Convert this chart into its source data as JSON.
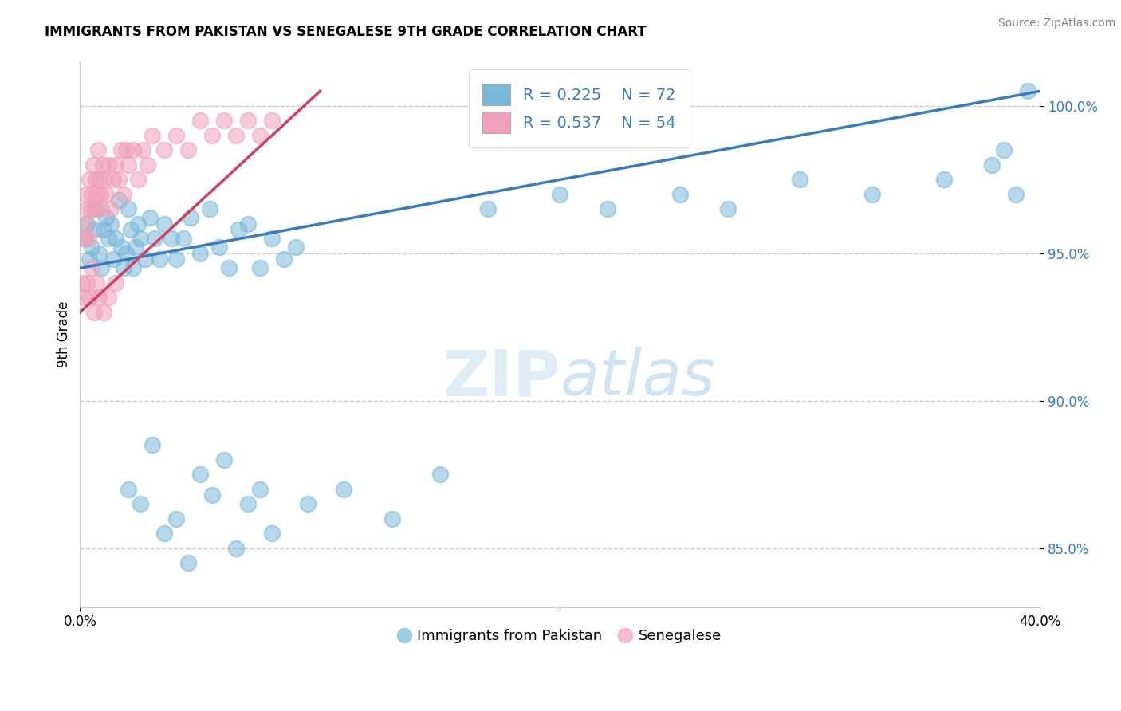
{
  "title": "IMMIGRANTS FROM PAKISTAN VS SENEGALESE 9TH GRADE CORRELATION CHART",
  "source": "Source: ZipAtlas.com",
  "ylabel": "9th Grade",
  "xlim": [
    0.0,
    40.0
  ],
  "ylim": [
    83.0,
    101.5
  ],
  "y_ticks": [
    85.0,
    90.0,
    95.0,
    100.0
  ],
  "y_tick_labels": [
    "85.0%",
    "90.0%",
    "95.0%",
    "100.0%"
  ],
  "legend_r1": "R = 0.225",
  "legend_n1": "N = 72",
  "legend_r2": "R = 0.537",
  "legend_n2": "N = 54",
  "color_blue": "#7ab8d9",
  "color_pink": "#f0a0b8",
  "trendline_blue": "#3a7abf",
  "trendline_pink": "#d04060",
  "legend_label1": "Immigrants from Pakistan",
  "legend_label2": "Senegalese",
  "blue_trendline_x": [
    0.0,
    40.0
  ],
  "blue_trendline_y": [
    94.5,
    100.5
  ],
  "pink_trendline_x": [
    0.0,
    10.0
  ],
  "pink_trendline_y": [
    93.0,
    100.5
  ],
  "blue_x": [
    0.2,
    0.3,
    0.4,
    0.5,
    0.6,
    0.7,
    0.8,
    0.9,
    1.0,
    1.1,
    1.2,
    1.3,
    1.4,
    1.5,
    1.6,
    1.7,
    1.8,
    1.9,
    2.0,
    2.1,
    2.2,
    2.3,
    2.4,
    2.5,
    2.7,
    2.9,
    3.1,
    3.3,
    3.5,
    3.8,
    4.0,
    4.3,
    4.6,
    5.0,
    5.4,
    5.8,
    6.2,
    6.6,
    7.0,
    7.5,
    8.0,
    8.5,
    9.0,
    2.0,
    2.5,
    3.0,
    3.5,
    4.0,
    4.5,
    5.0,
    5.5,
    6.0,
    6.5,
    7.0,
    7.5,
    8.0,
    9.5,
    11.0,
    13.0,
    15.0,
    17.0,
    20.0,
    22.0,
    25.0,
    27.0,
    30.0,
    33.0,
    36.0,
    38.0,
    39.0,
    39.5,
    38.5
  ],
  "blue_y": [
    95.5,
    96.0,
    94.8,
    95.2,
    95.8,
    96.5,
    95.0,
    94.5,
    95.8,
    96.2,
    95.5,
    96.0,
    94.8,
    95.5,
    96.8,
    95.2,
    94.5,
    95.0,
    96.5,
    95.8,
    94.5,
    95.2,
    96.0,
    95.5,
    94.8,
    96.2,
    95.5,
    94.8,
    96.0,
    95.5,
    94.8,
    95.5,
    96.2,
    95.0,
    96.5,
    95.2,
    94.5,
    95.8,
    96.0,
    94.5,
    95.5,
    94.8,
    95.2,
    87.0,
    86.5,
    88.5,
    85.5,
    86.0,
    84.5,
    87.5,
    86.8,
    88.0,
    85.0,
    86.5,
    87.0,
    85.5,
    86.5,
    87.0,
    86.0,
    87.5,
    96.5,
    97.0,
    96.5,
    97.0,
    96.5,
    97.5,
    97.0,
    97.5,
    98.0,
    97.0,
    100.5,
    98.5
  ],
  "pink_x": [
    0.1,
    0.15,
    0.2,
    0.25,
    0.3,
    0.35,
    0.4,
    0.45,
    0.5,
    0.55,
    0.6,
    0.65,
    0.7,
    0.75,
    0.8,
    0.85,
    0.9,
    0.95,
    1.0,
    1.1,
    1.2,
    1.3,
    1.4,
    1.5,
    1.6,
    1.7,
    1.8,
    1.9,
    2.0,
    2.2,
    2.4,
    2.6,
    2.8,
    3.0,
    3.5,
    4.0,
    4.5,
    5.0,
    5.5,
    6.0,
    6.5,
    7.0,
    7.5,
    8.0,
    0.2,
    0.3,
    0.4,
    0.5,
    0.6,
    0.7,
    0.8,
    1.0,
    1.2,
    1.5
  ],
  "pink_y": [
    94.0,
    95.5,
    96.0,
    97.0,
    96.5,
    95.5,
    97.5,
    96.5,
    97.0,
    98.0,
    96.5,
    97.5,
    97.0,
    98.5,
    97.5,
    97.0,
    96.5,
    98.0,
    97.5,
    97.0,
    98.0,
    96.5,
    97.5,
    98.0,
    97.5,
    98.5,
    97.0,
    98.5,
    98.0,
    98.5,
    97.5,
    98.5,
    98.0,
    99.0,
    98.5,
    99.0,
    98.5,
    99.5,
    99.0,
    99.5,
    99.0,
    99.5,
    99.0,
    99.5,
    93.5,
    94.0,
    93.5,
    94.5,
    93.0,
    94.0,
    93.5,
    93.0,
    93.5,
    94.0
  ]
}
